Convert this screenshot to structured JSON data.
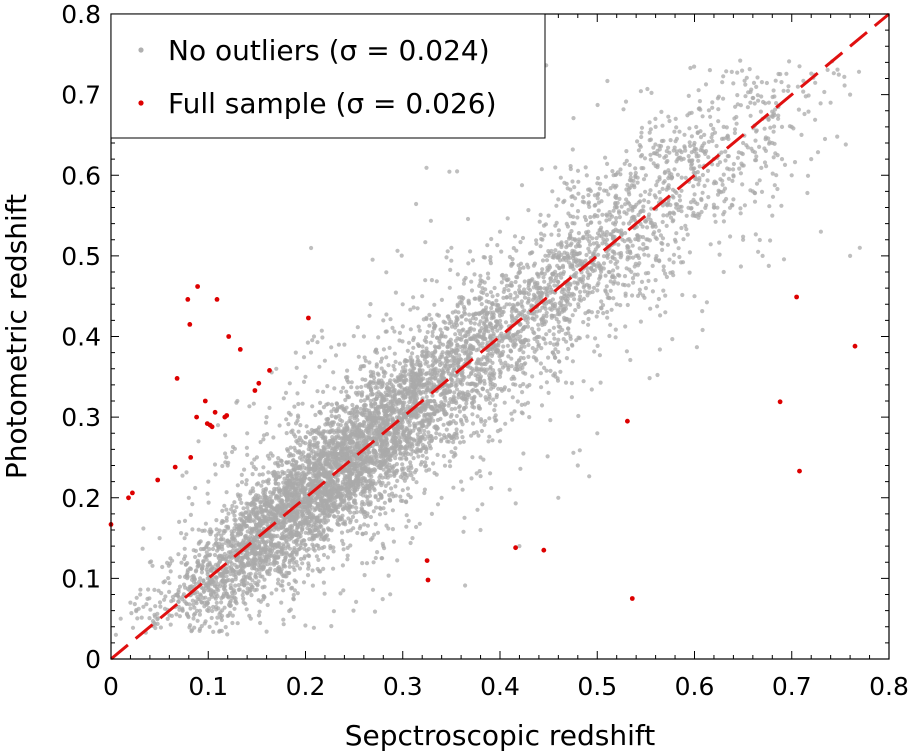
{
  "chart_data": {
    "type": "scatter",
    "xlabel": "Sepctroscopic redshift",
    "ylabel": "Photometric redshift",
    "xlim": [
      0,
      0.8
    ],
    "ylim": [
      0,
      0.8
    ],
    "xticks": [
      "0",
      "0.1",
      "0.2",
      "0.3",
      "0.4",
      "0.5",
      "0.6",
      "0.7",
      "0.8"
    ],
    "yticks": [
      "0",
      "0.1",
      "0.2",
      "0.3",
      "0.4",
      "0.5",
      "0.6",
      "0.7",
      "0.8"
    ],
    "reference_line": {
      "style": "dashed",
      "color": "#e01010",
      "from": [
        0,
        0
      ],
      "to": [
        0.8,
        0.8
      ]
    },
    "legend": {
      "placement": "top-left",
      "entries": [
        {
          "label": "No outliers (σ = 0.024)",
          "color": "#b0b0b0"
        },
        {
          "label": "Full sample (σ = 0.026)",
          "color": "#dd0000"
        }
      ]
    },
    "series": [
      {
        "name": "No outliers (σ = 0.024)",
        "color": "#a9a9a9",
        "sigma": 0.024,
        "points": [
          [
            0.33,
            0.47
          ],
          [
            0.35,
            0.51
          ],
          [
            0.38,
            0.47
          ],
          [
            0.4,
            0.53
          ],
          [
            0.42,
            0.48
          ],
          [
            0.45,
            0.55
          ],
          [
            0.46,
            0.57
          ],
          [
            0.47,
            0.5
          ],
          [
            0.5,
            0.59
          ],
          [
            0.52,
            0.56
          ],
          [
            0.53,
            0.63
          ],
          [
            0.55,
            0.6
          ],
          [
            0.56,
            0.66
          ],
          [
            0.58,
            0.58
          ],
          [
            0.6,
            0.64
          ],
          [
            0.61,
            0.65
          ],
          [
            0.62,
            0.62
          ],
          [
            0.63,
            0.66
          ],
          [
            0.64,
            0.6
          ],
          [
            0.65,
            0.64
          ],
          [
            0.66,
            0.58
          ],
          [
            0.67,
            0.67
          ],
          [
            0.68,
            0.55
          ],
          [
            0.69,
            0.66
          ],
          [
            0.7,
            0.6
          ],
          [
            0.71,
            0.65
          ],
          [
            0.72,
            0.62
          ],
          [
            0.74,
            0.69
          ],
          [
            0.76,
            0.7
          ],
          [
            0.76,
            0.5
          ],
          [
            0.77,
            0.51
          ],
          [
            0.73,
            0.53
          ],
          [
            0.55,
            0.46
          ],
          [
            0.57,
            0.43
          ],
          [
            0.6,
            0.45
          ],
          [
            0.63,
            0.48
          ],
          [
            0.65,
            0.52
          ],
          [
            0.67,
            0.5
          ],
          [
            0.52,
            0.44
          ],
          [
            0.49,
            0.4
          ],
          [
            0.45,
            0.33
          ],
          [
            0.43,
            0.3
          ],
          [
            0.4,
            0.27
          ],
          [
            0.38,
            0.25
          ],
          [
            0.36,
            0.22
          ],
          [
            0.34,
            0.2
          ],
          [
            0.33,
            0.18
          ],
          [
            0.31,
            0.15
          ],
          [
            0.28,
            0.14
          ],
          [
            0.27,
            0.12
          ],
          [
            0.41,
            0.21
          ],
          [
            0.38,
            0.16
          ],
          [
            0.42,
            0.14
          ],
          [
            0.46,
            0.2
          ],
          [
            0.48,
            0.24
          ],
          [
            0.5,
            0.28
          ],
          [
            0.12,
            0.24
          ],
          [
            0.14,
            0.28
          ],
          [
            0.15,
            0.25
          ],
          [
            0.16,
            0.3
          ],
          [
            0.18,
            0.33
          ],
          [
            0.2,
            0.35
          ],
          [
            0.22,
            0.37
          ],
          [
            0.24,
            0.39
          ],
          [
            0.26,
            0.4
          ],
          [
            0.28,
            0.42
          ],
          [
            0.13,
            0.32
          ],
          [
            0.1,
            0.22
          ],
          [
            0.08,
            0.2
          ],
          [
            0.07,
            0.17
          ],
          [
            0.05,
            0.15
          ],
          [
            0.04,
            0.12
          ],
          [
            0.03,
            0.08
          ],
          [
            0.02,
            0.07
          ],
          [
            0.01,
            0.05
          ],
          [
            0.005,
            0.03
          ],
          [
            0.09,
            0.27
          ],
          [
            0.11,
            0.29
          ],
          [
            0.17,
            0.36
          ],
          [
            0.19,
            0.38
          ],
          [
            0.3,
            0.44
          ],
          [
            0.32,
            0.45
          ],
          [
            0.35,
            0.37
          ],
          [
            0.37,
            0.41
          ],
          [
            0.39,
            0.43
          ],
          [
            0.41,
            0.44
          ],
          [
            0.44,
            0.46
          ],
          [
            0.47,
            0.45
          ],
          [
            0.58,
            0.52
          ],
          [
            0.6,
            0.55
          ],
          [
            0.62,
            0.56
          ],
          [
            0.64,
            0.57
          ],
          [
            0.66,
            0.63
          ],
          [
            0.68,
            0.64
          ],
          [
            0.69,
            0.62
          ],
          [
            0.7,
            0.66
          ],
          [
            0.56,
            0.47
          ],
          [
            0.54,
            0.5
          ],
          [
            0.51,
            0.52
          ],
          [
            0.49,
            0.48
          ],
          [
            0.47,
            0.41
          ],
          [
            0.44,
            0.39
          ],
          [
            0.42,
            0.37
          ],
          [
            0.4,
            0.35
          ]
        ]
      },
      {
        "name": "Full sample (σ = 0.026)",
        "color": "#dd0000",
        "points": [
          [
            0.0,
            0.167
          ],
          [
            0.018,
            0.2
          ],
          [
            0.022,
            0.206
          ],
          [
            0.048,
            0.222
          ],
          [
            0.066,
            0.238
          ],
          [
            0.068,
            0.348
          ],
          [
            0.079,
            0.446
          ],
          [
            0.081,
            0.415
          ],
          [
            0.082,
            0.25
          ],
          [
            0.088,
            0.3
          ],
          [
            0.089,
            0.462
          ],
          [
            0.097,
            0.32
          ],
          [
            0.099,
            0.292
          ],
          [
            0.102,
            0.29
          ],
          [
            0.104,
            0.288
          ],
          [
            0.107,
            0.306
          ],
          [
            0.109,
            0.446
          ],
          [
            0.117,
            0.3
          ],
          [
            0.119,
            0.302
          ],
          [
            0.121,
            0.4
          ],
          [
            0.133,
            0.384
          ],
          [
            0.148,
            0.333
          ],
          [
            0.152,
            0.342
          ],
          [
            0.163,
            0.358
          ],
          [
            0.203,
            0.423
          ],
          [
            0.325,
            0.122
          ],
          [
            0.326,
            0.098
          ],
          [
            0.416,
            0.138
          ],
          [
            0.445,
            0.135
          ],
          [
            0.531,
            0.295
          ],
          [
            0.536,
            0.075
          ],
          [
            0.688,
            0.319
          ],
          [
            0.705,
            0.449
          ],
          [
            0.708,
            0.233
          ],
          [
            0.765,
            0.388
          ]
        ]
      }
    ]
  }
}
